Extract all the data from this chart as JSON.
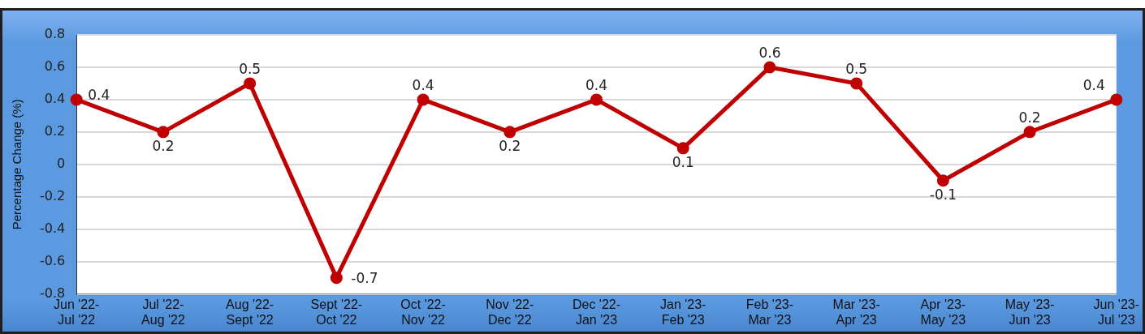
{
  "chart_data": {
    "type": "line",
    "ylabel": "Percentage Change (%)",
    "categories": [
      "Jun '22-\nJul '22",
      "Jul '22-\nAug '22",
      "Aug '22-\nSept '22",
      "Sept '22-\nOct '22",
      "Oct '22-\nNov '22",
      "Nov '22-\nDec '22",
      "Dec '22-\nJan '23",
      "Jan '23-\nFeb '23",
      "Feb '23-\nMar '23",
      "Mar '23-\nApr '23",
      "Apr '23-\nMay '23",
      "May '23-\nJun '23",
      "Jun '23-\nJul '23"
    ],
    "series": [
      {
        "color": "#c00000",
        "values": [
          0.4,
          0.2,
          0.5,
          -0.7,
          0.4,
          0.2,
          0.4,
          0.1,
          0.6,
          0.5,
          -0.1,
          0.2,
          0.4
        ]
      }
    ],
    "ylim": [
      -0.8,
      0.8
    ],
    "yticks": [
      -0.8,
      -0.6,
      -0.4,
      -0.2,
      0,
      0.2,
      0.4,
      0.6,
      0.8
    ],
    "grid": "y",
    "legend": false,
    "marker": "circle",
    "line_style": "solid",
    "data_labels": true
  }
}
